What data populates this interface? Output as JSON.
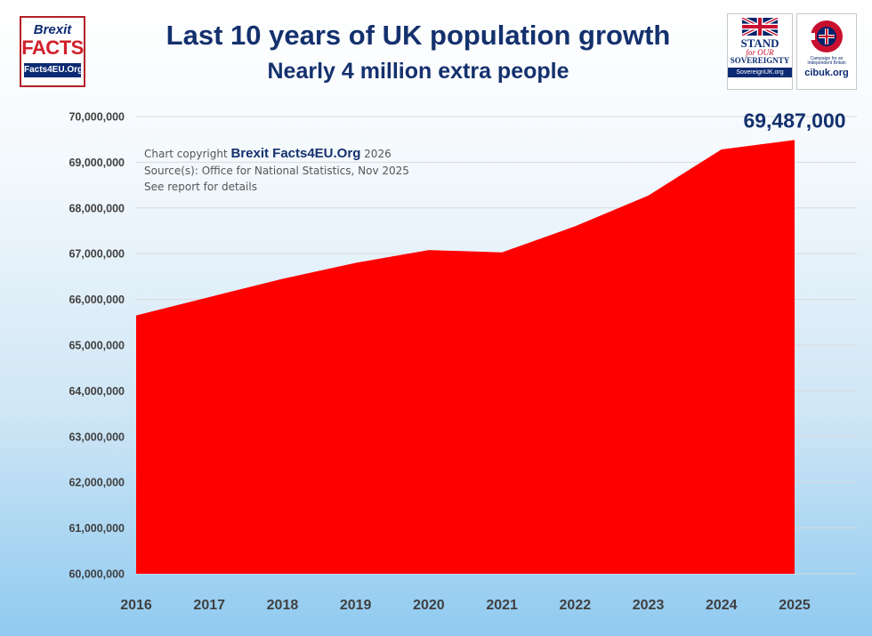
{
  "logos": {
    "brexit": {
      "line1": "Brexit",
      "line2": "FACTS",
      "line3": "Facts4EU.Org"
    },
    "stand": {
      "line1": "STAND",
      "line2": "for OUR",
      "line3": "SOVEREIGNTY",
      "url": "SovereignUK.org"
    },
    "cib": {
      "tagline": "Campaign for an Independent Britain",
      "url": "cibuk.org"
    }
  },
  "copyright": {
    "prefix": "Chart copyright ",
    "brand": "Brexit Facts4EU.Org",
    "year": " 2026",
    "source": "Source(s): Office for National Statistics, Nov 2025",
    "note": "See report for details"
  },
  "colors": {
    "area": "#ff0000",
    "title": "#14316e",
    "ticks": "#404040",
    "grid": "#d9d9d9"
  },
  "chart_data": {
    "type": "area",
    "title": "Last 10 years of UK population growth",
    "subtitle": "Nearly 4 million extra people",
    "xlabel": "",
    "ylabel": "",
    "categories": [
      "2016",
      "2017",
      "2018",
      "2019",
      "2020",
      "2021",
      "2022",
      "2023",
      "2024",
      "2025"
    ],
    "series": [
      {
        "values": [
          65650000,
          66050000,
          66450000,
          66800000,
          67080000,
          67030000,
          67600000,
          68270000,
          69280000,
          69487000
        ]
      }
    ],
    "ylim": [
      60000000,
      70000000
    ],
    "yticks": [
      60000000,
      61000000,
      62000000,
      63000000,
      64000000,
      65000000,
      66000000,
      67000000,
      68000000,
      69000000,
      70000000
    ],
    "ytick_labels": [
      "60,000,000",
      "61,000,000",
      "62,000,000",
      "63,000,000",
      "64,000,000",
      "65,000,000",
      "66,000,000",
      "67,000,000",
      "68,000,000",
      "69,000,000",
      "70,000,000"
    ],
    "annotations": [
      {
        "category": "2025",
        "text": "69,487,000"
      }
    ],
    "grid": true,
    "legend": "none"
  }
}
